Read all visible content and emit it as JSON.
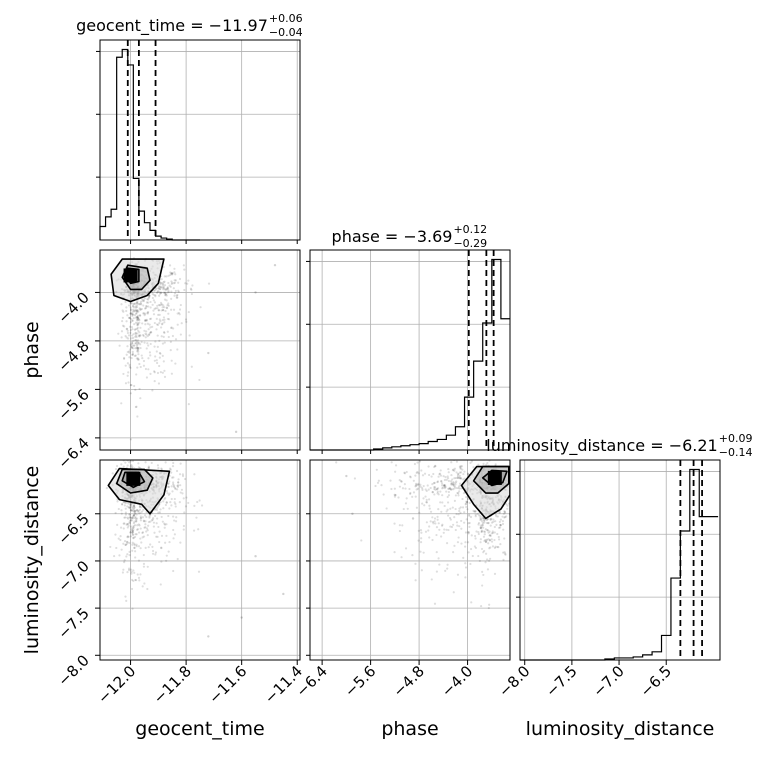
{
  "chart_data": {
    "type": "corner",
    "parameters": [
      "geocent_time",
      "phase",
      "luminosity_distance"
    ],
    "axis_labels": {
      "x": [
        "geocent_time",
        "phase",
        "luminosity_distance"
      ],
      "y": [
        "phase",
        "luminosity_distance"
      ]
    },
    "ranges": {
      "geocent_time": [
        -12.11,
        -11.39
      ],
      "phase": [
        -6.6,
        -3.3
      ],
      "luminosity_distance": [
        -8.05,
        -5.93
      ]
    },
    "ticks": {
      "geocent_time": [
        -12.0,
        -11.8,
        -11.6,
        -11.4
      ],
      "phase": [
        -6.4,
        -5.6,
        -4.8,
        -4.0
      ],
      "luminosity_distance": [
        -8.0,
        -7.5,
        -7.0,
        -6.5
      ]
    },
    "tick_labels": {
      "geocent_time": [
        "−12.0",
        "−11.8",
        "−11.6",
        "−11.4"
      ],
      "phase": [
        "−6.4",
        "−5.6",
        "−4.8",
        "−4.0"
      ],
      "luminosity_distance": [
        "−8.0",
        "−7.5",
        "−7.0",
        "−6.5"
      ]
    },
    "titles": [
      {
        "param": "geocent_time",
        "text": "geocent_time = −11.97",
        "upper": "+0.06",
        "lower": "−0.04"
      },
      {
        "param": "phase",
        "text": "phase = −3.69",
        "upper": "+0.12",
        "lower": "−0.29"
      },
      {
        "param": "luminosity_distance",
        "text": "luminosity_distance = −6.21",
        "upper": "+0.09",
        "lower": "−0.14"
      }
    ],
    "histograms": {
      "geocent_time": {
        "bin_edges": [
          -12.11,
          -12.09,
          -12.07,
          -12.05,
          -12.03,
          -12.01,
          -11.99,
          -11.97,
          -11.95,
          -11.93,
          -11.91,
          -11.89,
          -11.87,
          -11.85,
          -11.83,
          -11.81,
          -11.79,
          -11.77,
          -11.75
        ],
        "counts": [
          0.07,
          0.12,
          0.16,
          0.95,
          0.99,
          0.91,
          0.32,
          0.15,
          0.09,
          0.05,
          0.02,
          0.01,
          0.005,
          0,
          0,
          0,
          0,
          0
        ],
        "quantiles": [
          -12.01,
          -11.97,
          -11.91
        ]
      },
      "phase": {
        "bin_edges": [
          -6.6,
          -6.45,
          -6.3,
          -6.15,
          -6.0,
          -5.85,
          -5.7,
          -5.55,
          -5.4,
          -5.25,
          -5.1,
          -4.95,
          -4.8,
          -4.65,
          -4.5,
          -4.35,
          -4.2,
          -4.05,
          -3.9,
          -3.75,
          -3.6,
          -3.45,
          -3.3
        ],
        "counts": [
          0,
          0,
          0,
          0,
          0,
          0,
          0,
          0.005,
          0.01,
          0.015,
          0.02,
          0.025,
          0.03,
          0.04,
          0.05,
          0.07,
          0.11,
          0.25,
          0.42,
          0.6,
          0.9,
          0.62
        ],
        "quantiles": [
          -3.98,
          -3.69,
          -3.57
        ]
      },
      "luminosity_distance": {
        "bin_edges": [
          -8.05,
          -7.95,
          -7.85,
          -7.75,
          -7.65,
          -7.55,
          -7.45,
          -7.35,
          -7.25,
          -7.15,
          -7.05,
          -6.95,
          -6.85,
          -6.75,
          -6.65,
          -6.55,
          -6.45,
          -6.35,
          -6.25,
          -6.15,
          -6.05,
          -5.95
        ],
        "counts": [
          0,
          0,
          0,
          0,
          0,
          0,
          0,
          0,
          0,
          0.005,
          0.01,
          0.01,
          0.015,
          0.025,
          0.04,
          0.12,
          0.4,
          0.63,
          0.93,
          0.7,
          0.7
        ],
        "quantiles": [
          -6.35,
          -6.21,
          -6.12
        ]
      }
    },
    "scatter_panels": [
      {
        "x": "geocent_time",
        "y": "phase",
        "bulk": {
          "center": [
            -11.97,
            -4.05
          ],
          "spread": [
            0.08,
            0.7
          ]
        },
        "contours": [
          [
            [
              -12.07,
              -3.7
            ],
            [
              -12.06,
              -4.05
            ],
            [
              -12.0,
              -4.15
            ],
            [
              -11.94,
              -4.05
            ],
            [
              -11.9,
              -3.85
            ],
            [
              -11.88,
              -3.45
            ],
            [
              -12.03,
              -3.45
            ]
          ],
          [
            [
              -12.03,
              -3.75
            ],
            [
              -12.0,
              -3.95
            ],
            [
              -11.96,
              -3.95
            ],
            [
              -11.93,
              -3.8
            ],
            [
              -11.94,
              -3.6
            ],
            [
              -12.01,
              -3.55
            ]
          ],
          [
            [
              -12.02,
              -3.72
            ],
            [
              -12.0,
              -3.85
            ],
            [
              -11.97,
              -3.82
            ],
            [
              -11.97,
              -3.62
            ],
            [
              -12.01,
              -3.6
            ]
          ]
        ],
        "peak": [
          -12.0,
          -3.72
        ],
        "outliers": [
          [
            -11.62,
            -6.3
          ],
          [
            -11.55,
            -4.0
          ],
          [
            -11.48,
            -3.55
          ],
          [
            -11.72,
            -5.0
          ]
        ]
      },
      {
        "x": "geocent_time",
        "y": "luminosity_distance",
        "bulk": {
          "center": [
            -11.98,
            -6.25
          ],
          "spread": [
            0.08,
            0.4
          ]
        },
        "contours": [
          [
            [
              -12.08,
              -6.2
            ],
            [
              -12.04,
              -6.35
            ],
            [
              -11.96,
              -6.4
            ],
            [
              -11.93,
              -6.5
            ],
            [
              -11.88,
              -6.3
            ],
            [
              -11.86,
              -6.05
            ],
            [
              -12.04,
              -6.02
            ]
          ],
          [
            [
              -12.05,
              -6.18
            ],
            [
              -12.0,
              -6.28
            ],
            [
              -11.94,
              -6.25
            ],
            [
              -11.92,
              -6.12
            ],
            [
              -11.95,
              -6.03
            ],
            [
              -12.03,
              -6.03
            ]
          ],
          [
            [
              -12.03,
              -6.15
            ],
            [
              -11.99,
              -6.22
            ],
            [
              -11.95,
              -6.16
            ],
            [
              -11.97,
              -6.06
            ],
            [
              -12.02,
              -6.06
            ]
          ]
        ],
        "peak": [
          -11.99,
          -6.13
        ],
        "outliers": [
          [
            -11.72,
            -7.8
          ],
          [
            -11.45,
            -7.35
          ],
          [
            -11.55,
            -6.95
          ],
          [
            -11.6,
            -7.6
          ]
        ]
      },
      {
        "x": "phase",
        "y": "luminosity_distance",
        "bulk": {
          "center": [
            -3.8,
            -6.25
          ],
          "spread": [
            0.7,
            0.4
          ]
        },
        "contours": [
          [
            [
              -4.1,
              -6.2
            ],
            [
              -3.9,
              -6.4
            ],
            [
              -3.7,
              -6.55
            ],
            [
              -3.45,
              -6.45
            ],
            [
              -3.3,
              -6.3
            ],
            [
              -3.3,
              -6.0
            ],
            [
              -3.85,
              -6.0
            ]
          ],
          [
            [
              -3.9,
              -6.15
            ],
            [
              -3.7,
              -6.28
            ],
            [
              -3.5,
              -6.28
            ],
            [
              -3.32,
              -6.18
            ],
            [
              -3.32,
              -6.0
            ],
            [
              -3.75,
              -6.0
            ]
          ],
          [
            [
              -3.75,
              -6.12
            ],
            [
              -3.6,
              -6.2
            ],
            [
              -3.42,
              -6.17
            ],
            [
              -3.35,
              -6.05
            ],
            [
              -3.6,
              -6.04
            ]
          ]
        ],
        "peak": [
          -3.55,
          -6.12
        ],
        "outliers": [
          [
            -6.0,
            -6.1
          ],
          [
            -5.9,
            -6.5
          ],
          [
            -5.2,
            -6.3
          ],
          [
            -4.9,
            -6.55
          ]
        ]
      }
    ]
  }
}
